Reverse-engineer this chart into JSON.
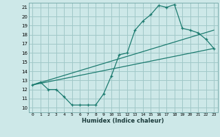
{
  "bg_color": "#cde8e8",
  "grid_color": "#a0c8c8",
  "line_color": "#1a7a6e",
  "xlabel": "Humidex (Indice chaleur)",
  "xlim": [
    -0.5,
    23.5
  ],
  "ylim": [
    9.5,
    21.5
  ],
  "xticks": [
    0,
    1,
    2,
    3,
    4,
    5,
    6,
    7,
    8,
    9,
    10,
    11,
    12,
    13,
    14,
    15,
    16,
    17,
    18,
    19,
    20,
    21,
    22,
    23
  ],
  "yticks": [
    10,
    11,
    12,
    13,
    14,
    15,
    16,
    17,
    18,
    19,
    20,
    21
  ],
  "line1_x": [
    0,
    1,
    2,
    3,
    4,
    5,
    6,
    7,
    8,
    9,
    10,
    11,
    12,
    13,
    14,
    15,
    16,
    17,
    18,
    19,
    20,
    21,
    22,
    23
  ],
  "line1_y": [
    12.5,
    12.8,
    12.0,
    12.0,
    11.2,
    10.3,
    10.3,
    10.3,
    10.3,
    11.5,
    13.5,
    15.8,
    16.0,
    18.5,
    19.5,
    20.2,
    21.2,
    21.0,
    21.3,
    18.7,
    18.5,
    18.2,
    17.5,
    16.5
  ],
  "line2_x": [
    0,
    23
  ],
  "line2_y": [
    12.5,
    16.5
  ],
  "line3_x": [
    0,
    23
  ],
  "line3_y": [
    12.5,
    18.5
  ]
}
